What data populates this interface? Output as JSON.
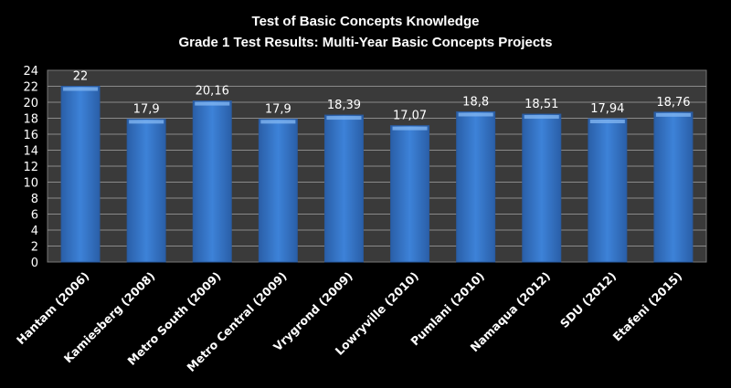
{
  "chart_data": {
    "type": "bar",
    "title": "Test of Basic Concepts Knowledge",
    "subtitle": "Grade 1 Test Results: Multi-Year Basic Concepts Projects",
    "xlabel": "",
    "ylabel": "",
    "ylim": [
      0,
      24
    ],
    "yticks": [
      0,
      2,
      4,
      6,
      8,
      10,
      12,
      14,
      16,
      18,
      20,
      22,
      24
    ],
    "grid": true,
    "legend": "none",
    "categories": [
      "Hantam (2006)",
      "Kamiesberg (2008)",
      "Metro South (2009)",
      "Metro Central (2009)",
      "Vrygrond (2009)",
      "Lowryville (2010)",
      "Pumlani (2010)",
      "Namaqua (2012)",
      "SDU (2012)",
      "Etafeni (2015)"
    ],
    "values": [
      22,
      17.9,
      20.16,
      17.9,
      18.39,
      17.07,
      18.8,
      18.51,
      17.94,
      18.76
    ],
    "data_labels": [
      "22",
      "17,9",
      "20,16",
      "17,9",
      "18,39",
      "17,07",
      "18,8",
      "18,51",
      "17,94",
      "18,76"
    ],
    "colors": {
      "bar": "#3a7ad0",
      "bar_dark": "#2a5a9e",
      "plot_bg": "#3a3a3a",
      "grid": "#8a8a8a",
      "background": "#000000"
    }
  }
}
